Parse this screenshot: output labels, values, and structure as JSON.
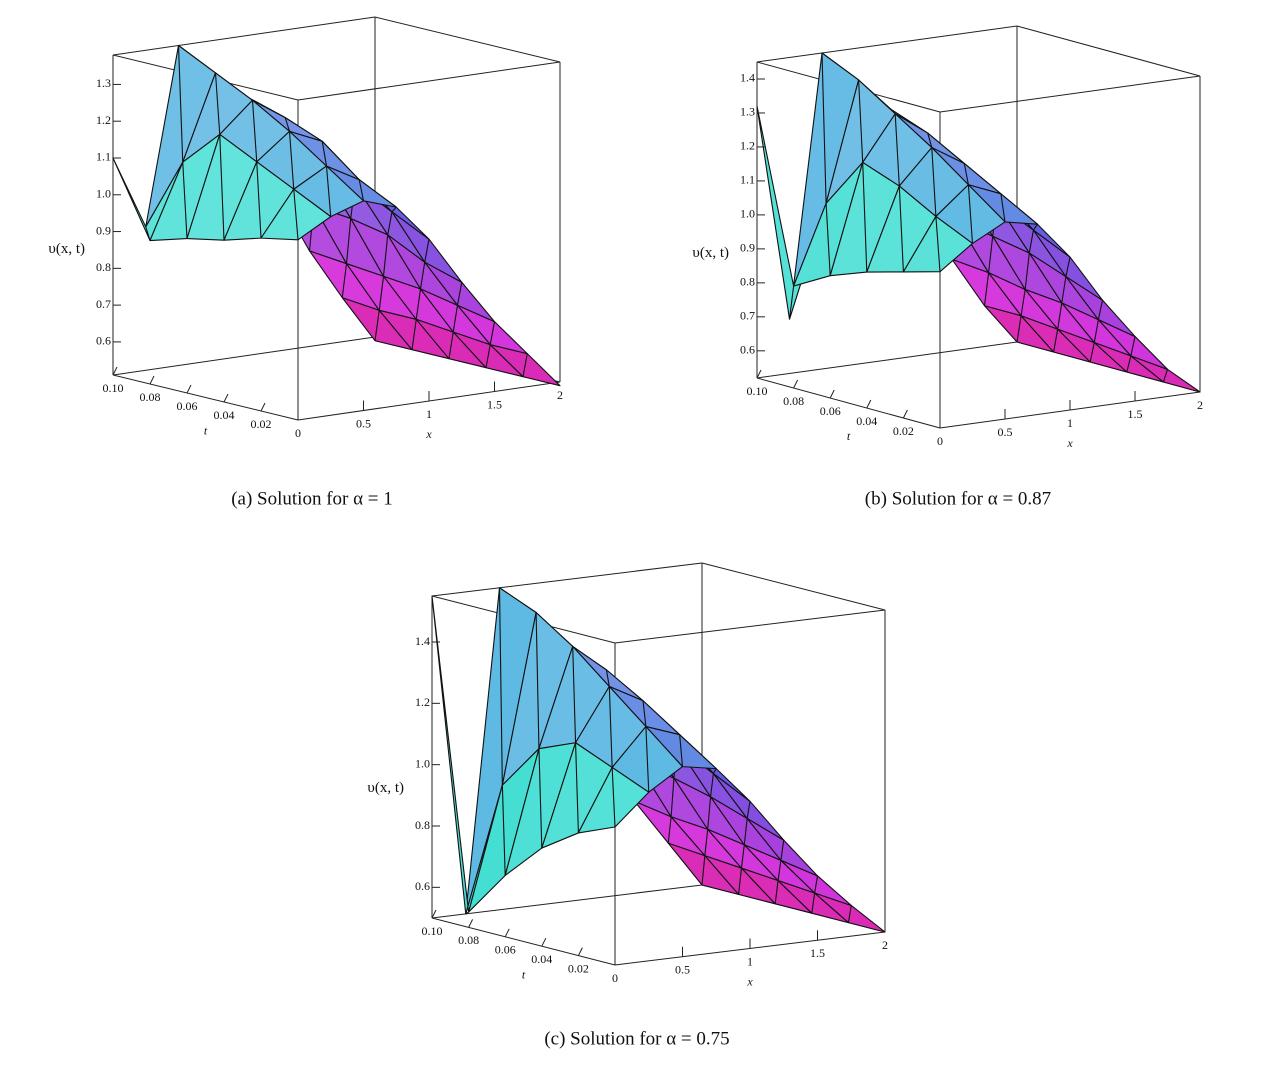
{
  "chart_data": [
    {
      "type": "surface",
      "caption": "(a) Solution for α = 1",
      "zlabel": "υ(x, t)",
      "xlabel": "x",
      "tlabel": "t",
      "x": [
        0,
        0.25,
        0.5,
        0.75,
        1,
        1.25,
        1.5,
        1.75,
        2
      ],
      "t": [
        0,
        0.02,
        0.04,
        0.06,
        0.08,
        0.1
      ],
      "z": [
        [
          1.0,
          1.05,
          1.08,
          1.05,
          0.95,
          0.82,
          0.7,
          0.6,
          0.5
        ],
        [
          0.98,
          1.1,
          1.15,
          1.1,
          1.0,
          0.85,
          0.72,
          0.6,
          0.5
        ],
        [
          0.95,
          1.15,
          1.22,
          1.18,
          1.05,
          0.9,
          0.74,
          0.61,
          0.5
        ],
        [
          0.93,
          1.2,
          1.28,
          1.22,
          1.08,
          0.92,
          0.75,
          0.62,
          0.5
        ],
        [
          0.9,
          1.1,
          1.33,
          1.25,
          1.1,
          0.93,
          0.76,
          0.62,
          0.5
        ],
        [
          1.1,
          0.9,
          1.38,
          1.28,
          1.12,
          0.94,
          0.77,
          0.63,
          0.5
        ]
      ],
      "xlim": [
        0,
        2
      ],
      "tlim": [
        0,
        0.1
      ],
      "zlim": [
        0.51,
        1.38
      ],
      "xticks": [
        0,
        0.5,
        1,
        1.5,
        2
      ],
      "tticks": [
        {
          "value": 0.1,
          "label": "0.10"
        },
        0.08,
        0.06,
        0.04,
        0.02
      ],
      "zticks": [
        0.6,
        0.7,
        0.8,
        0.9,
        {
          "value": 1,
          "label": "1.0"
        },
        1.1,
        1.2,
        1.3
      ]
    },
    {
      "type": "surface",
      "caption": "(b) Solution for α = 0.87",
      "zlabel": "υ(x, t)",
      "xlabel": "x",
      "tlabel": "t",
      "x": [
        0,
        0.25,
        0.5,
        0.75,
        1,
        1.25,
        1.5,
        1.75,
        2
      ],
      "t": [
        0,
        0.02,
        0.04,
        0.06,
        0.08,
        0.1
      ],
      "z": [
        [
          0.98,
          1.05,
          1.1,
          1.08,
          0.97,
          0.83,
          0.71,
          0.6,
          0.52
        ],
        [
          0.95,
          1.1,
          1.18,
          1.14,
          1.02,
          0.87,
          0.73,
          0.61,
          0.52
        ],
        [
          0.92,
          1.16,
          1.26,
          1.2,
          1.07,
          0.91,
          0.75,
          0.62,
          0.52
        ],
        [
          0.88,
          1.2,
          1.33,
          1.26,
          1.1,
          0.93,
          0.76,
          0.63,
          0.52
        ],
        [
          0.82,
          1.05,
          1.4,
          1.3,
          1.13,
          0.95,
          0.78,
          0.64,
          0.52
        ],
        [
          1.32,
          0.68,
          1.45,
          1.33,
          1.15,
          0.96,
          0.79,
          0.64,
          0.52
        ]
      ],
      "xlim": [
        0,
        2
      ],
      "tlim": [
        0,
        0.1
      ],
      "zlim": [
        0.52,
        1.45
      ],
      "xticks": [
        0,
        0.5,
        1,
        1.5,
        2
      ],
      "tticks": [
        {
          "value": 0.1,
          "label": "0.10"
        },
        0.08,
        0.06,
        0.04,
        0.02
      ],
      "zticks": [
        0.6,
        0.7,
        0.8,
        0.9,
        {
          "value": 1,
          "label": "1.0"
        },
        1.1,
        1.2,
        1.3,
        1.4
      ]
    },
    {
      "type": "surface",
      "caption": "(c) Solution for α = 0.75",
      "zlabel": "υ(x, t)",
      "xlabel": "x",
      "tlabel": "t",
      "x": [
        0,
        0.25,
        0.5,
        0.75,
        1,
        1.25,
        1.5,
        1.75,
        2
      ],
      "t": [
        0,
        0.02,
        0.04,
        0.06,
        0.08,
        0.1
      ],
      "z": [
        [
          0.95,
          1.05,
          1.12,
          1.1,
          0.98,
          0.84,
          0.71,
          0.6,
          0.5
        ],
        [
          0.9,
          1.1,
          1.22,
          1.18,
          1.04,
          0.88,
          0.73,
          0.61,
          0.5
        ],
        [
          0.82,
          1.15,
          1.32,
          1.26,
          1.1,
          0.92,
          0.75,
          0.62,
          0.5
        ],
        [
          0.7,
          1.1,
          1.42,
          1.33,
          1.14,
          0.95,
          0.77,
          0.63,
          0.5
        ],
        [
          0.55,
          0.95,
          1.5,
          1.38,
          1.17,
          0.97,
          0.78,
          0.64,
          0.5
        ],
        [
          1.55,
          0.5,
          1.55,
          1.42,
          1.2,
          0.98,
          0.8,
          0.65,
          0.5
        ]
      ],
      "xlim": [
        0,
        2
      ],
      "tlim": [
        0,
        0.1
      ],
      "zlim": [
        0.5,
        1.55
      ],
      "xticks": [
        0,
        0.5,
        1,
        1.5,
        2
      ],
      "tticks": [
        {
          "value": 0.1,
          "label": "0.10"
        },
        0.08,
        0.06,
        0.04,
        0.02
      ],
      "zticks": [
        0.6,
        0.8,
        {
          "value": 1,
          "label": "1.0"
        },
        1.2,
        1.4
      ]
    }
  ]
}
